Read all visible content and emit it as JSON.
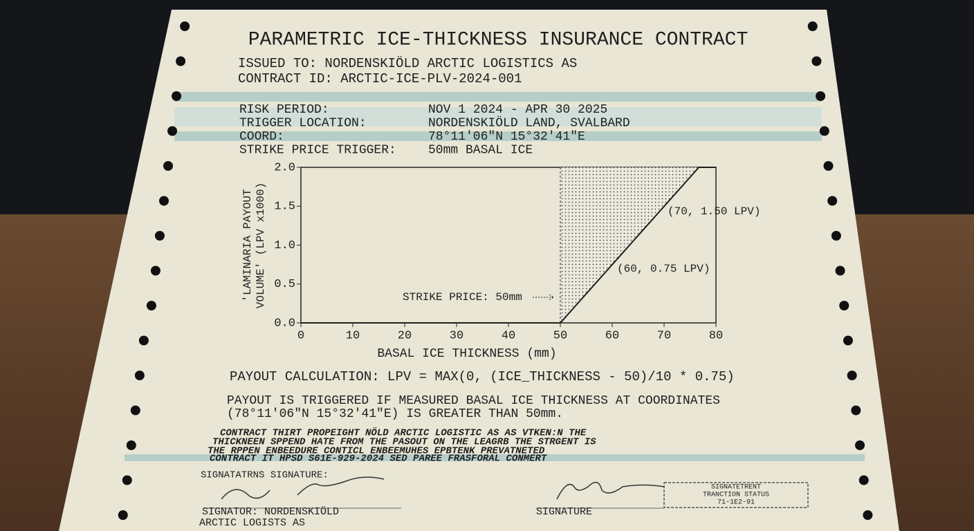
{
  "title": "PARAMETRIC ICE-THICKNESS INSURANCE CONTRACT",
  "issued_to": "ISSUED TO: NORDENSKIÖLD ARCTIC LOGISTICS AS",
  "contract_id": "CONTRACT ID: ARCTIC-ICE-PLV-2024-001",
  "fields": [
    [
      "RISK PERIOD:",
      "NOV 1 2024 - APR 30 2025"
    ],
    [
      "TRIGGER LOCATION:",
      "NORDENSKIÖLD LAND, SVALBARD"
    ],
    [
      "COORD:",
      "78°11'06\"N 15°32'41\"E"
    ],
    [
      "STRIKE PRICE TRIGGER:",
      "50mm BASAL ICE"
    ]
  ],
  "chart_data": {
    "type": "line",
    "x_label": "BASAL ICE THICKNESS (mm)",
    "y_label": "'LAMINARIA PAYOUT VOLUME' (LPV x1000)",
    "x": [
      0,
      50,
      76.7,
      80
    ],
    "values": [
      0,
      0,
      2.0,
      2.0
    ],
    "color": "#1e1e1e",
    "xlim": [
      0,
      80
    ],
    "ylim": [
      0,
      2
    ],
    "xticks": [
      0,
      10,
      20,
      30,
      40,
      50,
      60,
      70,
      80
    ],
    "yticks": [
      {
        "value": 0,
        "label": "0.0"
      },
      {
        "value": 0.5,
        "label": "0.5"
      },
      {
        "value": 1,
        "label": "1.0"
      },
      {
        "value": 1.5,
        "label": "1.5"
      },
      {
        "value": 2,
        "label": "2.0"
      }
    ],
    "annotations": [
      "(70, 1.50 LPV)",
      "(60, 0.75 LPV)",
      "STRIKE PRICE: 50mm"
    ]
  },
  "formula": "PAYOUT CALCULATION: LPV = MAX(0, (ICE_THICKNESS - 50)/10 * 0.75)",
  "trigger_text": [
    "PAYOUT IS TRIGGERED IF MEASURED BASAL ICE THICKNESS AT COORDINATES",
    "(78°11'06\"N 15°32'41\"E) IS GREATER THAN 50mm."
  ],
  "fine_print": [
    "CONTRACT THIRT PROPEIGHT NÖLD ARCTIC LOGISTIC AS AS VTKEN:N THE",
    "THICKNEEN SPPEND HATE FROM THE PASOUT ON THE LEAGRB THE STRGENT IS",
    "THE RPPEN ENBEEDURE CONTICL ENBEEMUHES EPBTENK PREVATNETED",
    "CONTRACT IT HPSD S61E-929-2024 SED PAREE FRASFORAL CONMERT"
  ],
  "signature": {
    "heading": "SIGNATATRNS SIGNATURE:",
    "signator": [
      "SIGNATOR: NORDENSKIÖLD",
      "ARCTIC LOGISTS AS"
    ],
    "right_label": "SIGNATURE",
    "stamp": [
      "SIGNATETRENT",
      "TRANCTION STATUS",
      "71-1E2-91"
    ]
  }
}
